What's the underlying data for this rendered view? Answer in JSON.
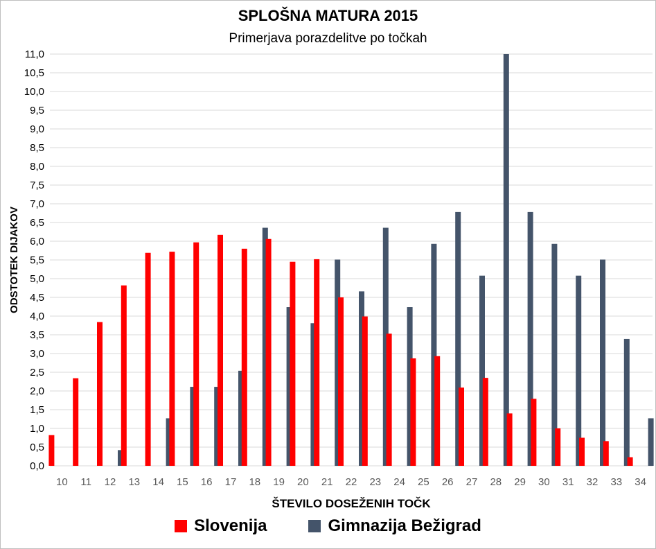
{
  "chart_data": {
    "type": "bar",
    "title": "SPLOŠNA MATURA 2015",
    "subtitle": "Primerjava porazdelitve po točkah",
    "xlabel": "ŠTEVILO DOSEŽENIH TOČK",
    "ylabel": "ODSTOTEK  DIJAKOV",
    "ylim": [
      0,
      11
    ],
    "ytick_step": 0.5,
    "categories": [
      "10",
      "11",
      "12",
      "13",
      "14",
      "15",
      "16",
      "17",
      "18",
      "19",
      "20",
      "21",
      "22",
      "23",
      "24",
      "25",
      "26",
      "27",
      "28",
      "29",
      "30",
      "31",
      "32",
      "33",
      "34"
    ],
    "series": [
      {
        "name": "Slovenija",
        "color": "#ff0000",
        "values": [
          0.82,
          2.34,
          3.84,
          4.82,
          5.69,
          5.72,
          5.97,
          6.17,
          5.8,
          6.06,
          5.45,
          5.52,
          4.5,
          3.99,
          3.53,
          2.87,
          2.93,
          2.09,
          2.35,
          1.4,
          1.79,
          1.0,
          0.75,
          0.66,
          0.23
        ]
      },
      {
        "name": "Gimnazija Bežigrad",
        "color": "#44546a",
        "values": [
          0,
          0,
          0.42,
          0,
          1.27,
          2.11,
          2.11,
          2.54,
          6.36,
          4.24,
          3.81,
          5.51,
          4.66,
          6.36,
          4.24,
          5.93,
          6.78,
          5.08,
          11.0,
          6.78,
          5.93,
          5.08,
          5.51,
          3.39,
          1.27
        ]
      }
    ],
    "legend_position": "bottom",
    "grid": true
  }
}
